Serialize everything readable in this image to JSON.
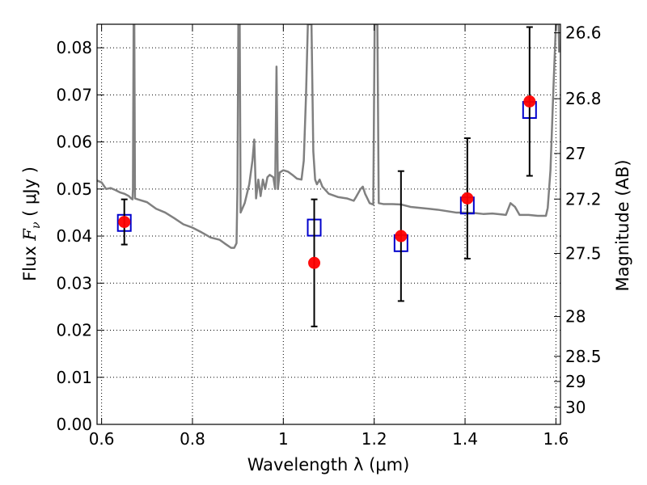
{
  "chart_data": {
    "type": "scatter",
    "xlabel": "Wavelength  λ (μm)",
    "ylabel": "Flux  F_ν  ( μJy )",
    "ylabel_parts": {
      "prefix": "Flux  ",
      "symbol": "F",
      "subscript": "ν",
      "unit": "  ( μJy )"
    },
    "y2label": "Magnitude (AB)",
    "xlim": [
      0.59,
      1.61
    ],
    "ylim": [
      0.0,
      0.085
    ],
    "grid": true,
    "xticks": [
      {
        "value": 0.6,
        "label": "0.6"
      },
      {
        "value": 0.8,
        "label": "0.8"
      },
      {
        "value": 1.0,
        "label": "1"
      },
      {
        "value": 1.2,
        "label": "1.2"
      },
      {
        "value": 1.4,
        "label": "1.4"
      },
      {
        "value": 1.6,
        "label": "1.6"
      }
    ],
    "yticks": [
      {
        "value": 0.0,
        "label": "0.00"
      },
      {
        "value": 0.01,
        "label": "0.01"
      },
      {
        "value": 0.02,
        "label": "0.02"
      },
      {
        "value": 0.03,
        "label": "0.03"
      },
      {
        "value": 0.04,
        "label": "0.04"
      },
      {
        "value": 0.05,
        "label": "0.05"
      },
      {
        "value": 0.06,
        "label": "0.06"
      },
      {
        "value": 0.07,
        "label": "0.07"
      },
      {
        "value": 0.08,
        "label": "0.08"
      }
    ],
    "y2ticks": [
      {
        "value": 26.6,
        "label": "26.6"
      },
      {
        "value": 26.8,
        "label": "26.8"
      },
      {
        "value": 27.0,
        "label": "27"
      },
      {
        "value": 27.2,
        "label": "27.2"
      },
      {
        "value": 27.5,
        "label": "27.5"
      },
      {
        "value": 28.0,
        "label": "28"
      },
      {
        "value": 28.5,
        "label": "28.5"
      },
      {
        "value": 29.0,
        "label": "29"
      },
      {
        "value": 30.0,
        "label": "30"
      }
    ],
    "series": [
      {
        "kind": "line",
        "color": "#808080",
        "points": [
          [
            0.59,
            0.0518
          ],
          [
            0.6,
            0.0514
          ],
          [
            0.61,
            0.05
          ],
          [
            0.62,
            0.0502
          ],
          [
            0.63,
            0.0498
          ],
          [
            0.64,
            0.0493
          ],
          [
            0.65,
            0.049
          ],
          [
            0.66,
            0.0485
          ],
          [
            0.665,
            0.048
          ],
          [
            0.668,
            0.0478
          ],
          [
            0.669,
            0.05
          ],
          [
            0.6705,
            0.085
          ],
          [
            0.672,
            0.085
          ],
          [
            0.6735,
            0.048
          ],
          [
            0.68,
            0.0478
          ],
          [
            0.7,
            0.0472
          ],
          [
            0.72,
            0.0458
          ],
          [
            0.74,
            0.045
          ],
          [
            0.76,
            0.0438
          ],
          [
            0.78,
            0.0425
          ],
          [
            0.8,
            0.0418
          ],
          [
            0.82,
            0.0408
          ],
          [
            0.84,
            0.0397
          ],
          [
            0.86,
            0.0392
          ],
          [
            0.87,
            0.0385
          ],
          [
            0.885,
            0.0375
          ],
          [
            0.892,
            0.0375
          ],
          [
            0.897,
            0.0385
          ],
          [
            0.899,
            0.05
          ],
          [
            0.901,
            0.085
          ],
          [
            0.904,
            0.085
          ],
          [
            0.906,
            0.045
          ],
          [
            0.915,
            0.047
          ],
          [
            0.925,
            0.051
          ],
          [
            0.932,
            0.056
          ],
          [
            0.936,
            0.0605
          ],
          [
            0.94,
            0.048
          ],
          [
            0.945,
            0.052
          ],
          [
            0.95,
            0.0485
          ],
          [
            0.955,
            0.052
          ],
          [
            0.96,
            0.05
          ],
          [
            0.965,
            0.0525
          ],
          [
            0.97,
            0.053
          ],
          [
            0.978,
            0.0525
          ],
          [
            0.982,
            0.05
          ],
          [
            0.985,
            0.076
          ],
          [
            0.988,
            0.05
          ],
          [
            0.992,
            0.0535
          ],
          [
            1.0,
            0.054
          ],
          [
            1.01,
            0.0537
          ],
          [
            1.02,
            0.053
          ],
          [
            1.03,
            0.0522
          ],
          [
            1.04,
            0.052
          ],
          [
            1.045,
            0.056
          ],
          [
            1.05,
            0.07
          ],
          [
            1.054,
            0.085
          ],
          [
            1.062,
            0.085
          ],
          [
            1.066,
            0.058
          ],
          [
            1.07,
            0.052
          ],
          [
            1.074,
            0.051
          ],
          [
            1.08,
            0.052
          ],
          [
            1.086,
            0.0505
          ],
          [
            1.1,
            0.049
          ],
          [
            1.12,
            0.0483
          ],
          [
            1.14,
            0.048
          ],
          [
            1.155,
            0.0475
          ],
          [
            1.16,
            0.0483
          ],
          [
            1.17,
            0.05
          ],
          [
            1.175,
            0.0505
          ],
          [
            1.18,
            0.049
          ],
          [
            1.19,
            0.047
          ],
          [
            1.198,
            0.0467
          ],
          [
            1.201,
            0.085
          ],
          [
            1.207,
            0.085
          ],
          [
            1.21,
            0.047
          ],
          [
            1.22,
            0.0468
          ],
          [
            1.24,
            0.0468
          ],
          [
            1.26,
            0.0467
          ],
          [
            1.28,
            0.0462
          ],
          [
            1.3,
            0.046
          ],
          [
            1.32,
            0.0458
          ],
          [
            1.34,
            0.0456
          ],
          [
            1.36,
            0.0453
          ],
          [
            1.38,
            0.045
          ],
          [
            1.4,
            0.045
          ],
          [
            1.42,
            0.0449
          ],
          [
            1.44,
            0.0447
          ],
          [
            1.46,
            0.0448
          ],
          [
            1.48,
            0.0446
          ],
          [
            1.49,
            0.0445
          ],
          [
            1.5,
            0.047
          ],
          [
            1.51,
            0.0462
          ],
          [
            1.52,
            0.0445
          ],
          [
            1.54,
            0.0445
          ],
          [
            1.56,
            0.0443
          ],
          [
            1.57,
            0.0443
          ],
          [
            1.578,
            0.0443
          ],
          [
            1.582,
            0.046
          ],
          [
            1.588,
            0.054
          ],
          [
            1.594,
            0.07
          ],
          [
            1.6,
            0.085
          ],
          [
            1.604,
            0.085
          ],
          [
            1.606,
            0.085
          ],
          [
            1.607,
            0.079
          ]
        ]
      },
      {
        "kind": "squares",
        "color": "#0000cc",
        "points": [
          [
            0.65,
            0.0428
          ],
          [
            1.068,
            0.0418
          ],
          [
            1.259,
            0.0385
          ],
          [
            1.405,
            0.0465
          ],
          [
            1.542,
            0.0668
          ]
        ]
      },
      {
        "kind": "points_with_errors",
        "color": "#ff0000",
        "points": [
          {
            "x": 0.65,
            "y": 0.043,
            "yerr": 0.0048
          },
          {
            "x": 1.068,
            "y": 0.0343,
            "yerr": 0.0135
          },
          {
            "x": 1.259,
            "y": 0.04,
            "yerr": 0.0138
          },
          {
            "x": 1.405,
            "y": 0.048,
            "yerr": 0.0128
          },
          {
            "x": 1.542,
            "y": 0.0686,
            "yerr": 0.0158
          }
        ]
      }
    ]
  }
}
